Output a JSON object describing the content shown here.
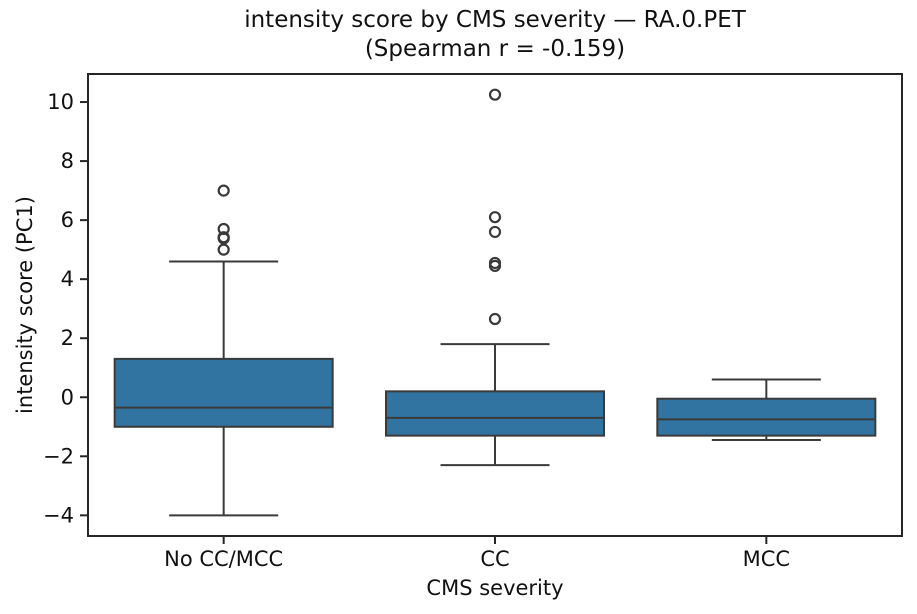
{
  "chart_data": {
    "type": "boxplot",
    "title": "intensity score by CMS severity — RA.0.PET",
    "subtitle": "(Spearman r = -0.159)",
    "xlabel": "CMS severity",
    "ylabel": "intensity score (PC1)",
    "categories": [
      "No CC/MCC",
      "CC",
      "MCC"
    ],
    "yticks": [
      10,
      8,
      6,
      4,
      2,
      0,
      -2,
      -4
    ],
    "ylim": [
      -4.7,
      10.95
    ],
    "grid": false,
    "legend": false,
    "boxes": [
      {
        "category": "No CC/MCC",
        "whisker_low": -4.0,
        "q1": -1.0,
        "median": -0.35,
        "q3": 1.3,
        "whisker_high": 4.6,
        "outliers": [
          5.0,
          5.38,
          5.42,
          5.7,
          7.0
        ]
      },
      {
        "category": "CC",
        "whisker_low": -2.3,
        "q1": -1.3,
        "median": -0.7,
        "q3": 0.2,
        "whisker_high": 1.8,
        "outliers": [
          2.65,
          4.45,
          4.55,
          5.6,
          6.1,
          10.25
        ]
      },
      {
        "category": "MCC",
        "whisker_low": -1.45,
        "q1": -1.3,
        "median": -0.75,
        "q3": -0.05,
        "whisker_high": 0.6,
        "outliers": []
      }
    ],
    "colors": {
      "box_fill": "#3274A1",
      "box_edge": "#3A3A3A",
      "whisker": "#3A3A3A",
      "median": "#3A3A3A",
      "outlier_edge": "#3A3A3A",
      "axis": "#262626",
      "text": "#111111",
      "background": "#FFFFFF"
    }
  }
}
